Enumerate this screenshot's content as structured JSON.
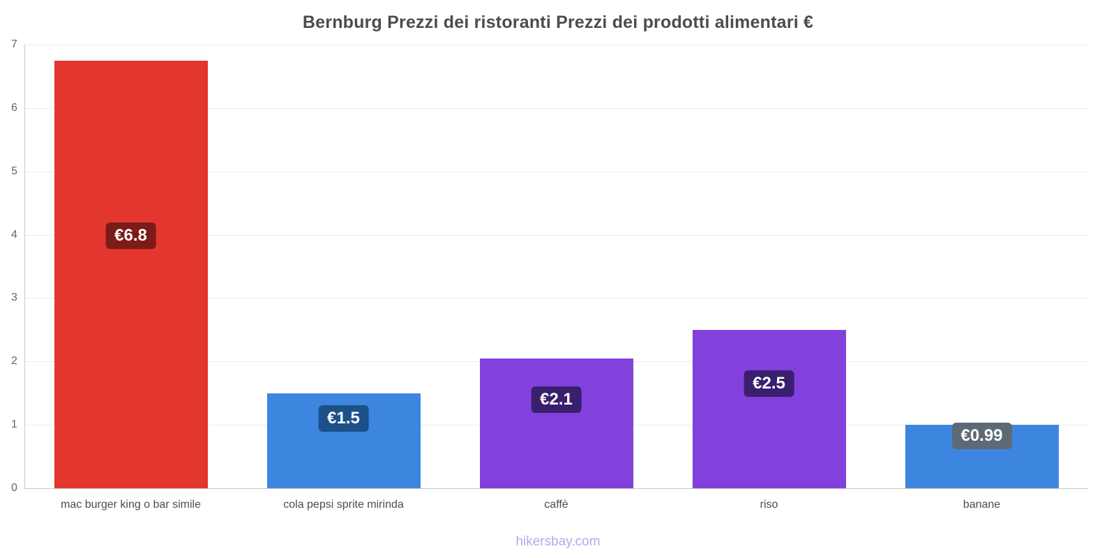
{
  "page": {
    "title": "Bernburg Prezzi dei ristoranti Prezzi dei prodotti alimentari €",
    "watermark": "hikersbay.com"
  },
  "chart_data": {
    "type": "bar",
    "title": "Bernburg Prezzi dei ristoranti Prezzi dei prodotti alimentari €",
    "categories": [
      "mac burger king o bar simile",
      "cola pepsi sprite mirinda",
      "caffè",
      "riso",
      "banane"
    ],
    "values": [
      6.75,
      1.5,
      2.05,
      2.5,
      1.0
    ],
    "value_labels": [
      "€6.8",
      "€1.5",
      "€2.1",
      "€2.5",
      "€0.99"
    ],
    "bar_colors": [
      "#e2362e",
      "#3d86e0",
      "#8240dd",
      "#8240dd",
      "#3d86e0"
    ],
    "label_bg_colors": [
      "#7c1b18",
      "#1d4f88",
      "#3a1f6e",
      "#3a1f6e",
      "#5d6a75"
    ],
    "ylim": [
      0,
      7
    ],
    "yticks": [
      0,
      1,
      2,
      3,
      4,
      5,
      6,
      7
    ],
    "grid": true,
    "legend": false,
    "xlabel": "",
    "ylabel": "",
    "watermark": "hikersbay.com"
  }
}
